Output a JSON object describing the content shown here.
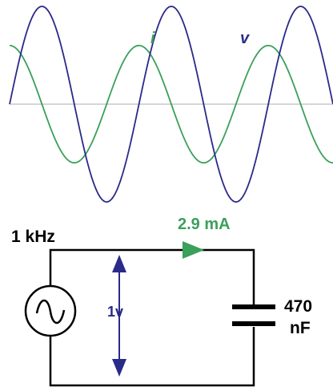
{
  "waveform": {
    "voltage_label": "v",
    "current_label": "i",
    "colors": {
      "voltage": "#2a2a8a",
      "current": "#3aa05a",
      "axis": "#c8c8cc"
    },
    "voltage_amplitude": 1.0,
    "current_amplitude": 0.6,
    "cycles": 2.5,
    "phase_shift_deg": 90
  },
  "circuit": {
    "source_frequency": "1 kHz",
    "current_label": "2.9 mA",
    "voltage_label": "1v",
    "capacitor_value": "470",
    "capacitor_unit": "nF",
    "colors": {
      "wire": "#000000",
      "current_arrow": "#3aa05a",
      "voltage_arrow": "#2a2a8a"
    }
  }
}
